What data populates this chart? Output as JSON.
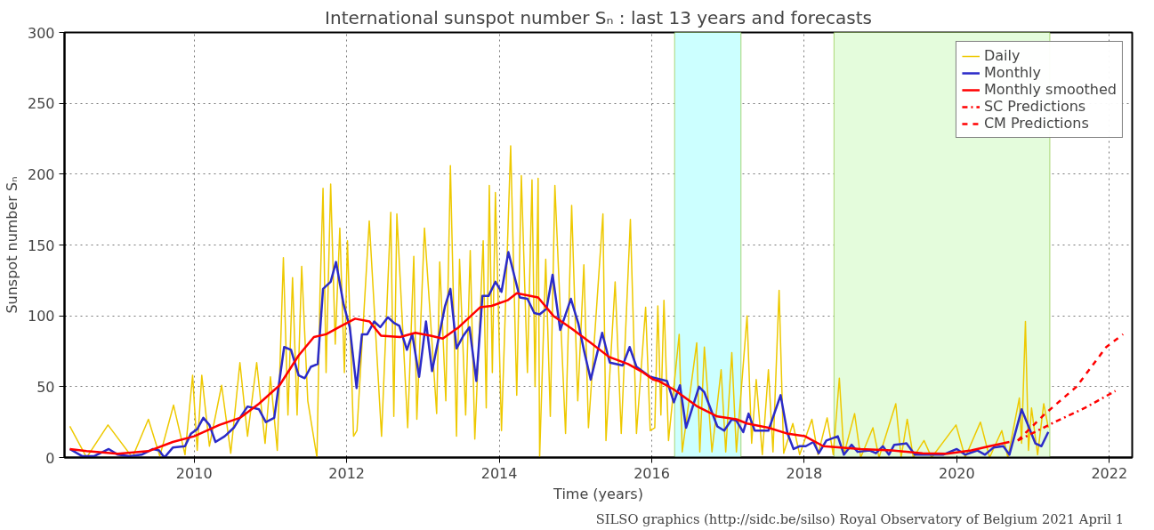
{
  "chart_data": {
    "type": "line",
    "title": "International sunspot number Sₙ : last 13 years and forecasts",
    "xlabel": "Time (years)",
    "ylabel": "Sunspot number Sₙ",
    "xlim": [
      2008.3,
      2022.3
    ],
    "xticks": [
      2010,
      2012,
      2014,
      2016,
      2018,
      2020,
      2022
    ],
    "ylim": [
      0,
      300
    ],
    "yticks": [
      0,
      50,
      100,
      150,
      200,
      250,
      300
    ],
    "grid": true,
    "legend": "top right",
    "marker": "none",
    "bands": [
      {
        "axis": "x",
        "from": 2016.3,
        "to": 2017.17,
        "color": "#ccffff"
      },
      {
        "axis": "x",
        "from": 2018.39,
        "to": 2021.22,
        "color": "#e4fcdc"
      }
    ],
    "annotations": [
      "SILSO graphics (http://sidc.be/silso)  Royal Observatory of Belgium  2021 April 1"
    ],
    "series": [
      {
        "name": "Daily",
        "color": "#eec900",
        "line_style": "solid",
        "x": [
          2008.37,
          2008.59,
          2008.87,
          2009.19,
          2009.4,
          2009.55,
          2009.73,
          2009.88,
          2009.98,
          2010.04,
          2010.1,
          2010.2,
          2010.36,
          2010.48,
          2010.6,
          2010.7,
          2010.82,
          2010.93,
          2011.0,
          2011.09,
          2011.17,
          2011.23,
          2011.29,
          2011.35,
          2011.41,
          2011.49,
          2011.61,
          2011.65,
          2011.69,
          2011.73,
          2011.79,
          2011.85,
          2011.91,
          2011.97,
          2012.01,
          2012.09,
          2012.135,
          2012.296,
          2012.457,
          2012.578,
          2012.618,
          2012.658,
          2012.8,
          2012.88,
          2012.92,
          2013.02,
          2013.18,
          2013.22,
          2013.3,
          2013.36,
          2013.44,
          2013.48,
          2013.56,
          2013.62,
          2013.68,
          2013.79,
          2013.83,
          2013.87,
          2013.91,
          2013.95,
          2014.03,
          2014.15,
          2014.23,
          2014.29,
          2014.37,
          2014.43,
          2014.47,
          2014.51,
          2014.53,
          2014.61,
          2014.67,
          2014.73,
          2014.87,
          2014.95,
          2015.03,
          2015.11,
          2015.17,
          2015.36,
          2015.4,
          2015.52,
          2015.6,
          2015.72,
          2015.8,
          2015.92,
          2015.98,
          2016.04,
          2016.08,
          2016.12,
          2016.16,
          2016.22,
          2016.36,
          2016.4,
          2016.59,
          2016.63,
          2016.69,
          2016.79,
          2016.91,
          2016.97,
          2017.05,
          2017.11,
          2017.25,
          2017.31,
          2017.37,
          2017.45,
          2017.53,
          2017.59,
          2017.67,
          2017.73,
          2017.85,
          2017.94,
          2018.1,
          2018.18,
          2018.3,
          2018.38,
          2018.46,
          2018.52,
          2018.66,
          2018.74,
          2018.9,
          2018.98,
          2019.2,
          2019.27,
          2019.35,
          2019.43,
          2019.57,
          2019.67,
          2019.99,
          2020.11,
          2020.31,
          2020.43,
          2020.59,
          2020.67,
          2020.82,
          2020.85,
          2020.9,
          2020.94,
          2020.98,
          2021.06,
          2021.14,
          2021.2
        ],
        "values": [
          22,
          0,
          23,
          0,
          27,
          1,
          37,
          2,
          58,
          5,
          58,
          8,
          51,
          3,
          67,
          15,
          67,
          10,
          57,
          5,
          141,
          30,
          127,
          30,
          135,
          40,
          0,
          115,
          190,
          60,
          193,
          80,
          162,
          60,
          153,
          15,
          19,
          167,
          15,
          173,
          29,
          172,
          21,
          142,
          27,
          162,
          31,
          138,
          40,
          206,
          15,
          140,
          30,
          146,
          13,
          153,
          35,
          192,
          60,
          187,
          19,
          220,
          44,
          199,
          60,
          196,
          50,
          197,
          0,
          140,
          29,
          192,
          17,
          178,
          40,
          136,
          21,
          172,
          12,
          124,
          17,
          168,
          17,
          106,
          19,
          21,
          107,
          30,
          111,
          12,
          87,
          4,
          81,
          4,
          78,
          4,
          62,
          4,
          74,
          4,
          100,
          10,
          55,
          2,
          62,
          4,
          118,
          3,
          24,
          2,
          27,
          2,
          28,
          2,
          56,
          2,
          31,
          0,
          21,
          0,
          38,
          0,
          27,
          0,
          12,
          0,
          23,
          0,
          25,
          0,
          19,
          0,
          42,
          10,
          96,
          5,
          35,
          2,
          38,
          21
        ]
      },
      {
        "name": "Monthly",
        "color": "#2b2bc8",
        "line_style": "solid",
        "x": [
          2008.37,
          2008.53,
          2008.69,
          2008.88,
          2009.0,
          2009.15,
          2009.31,
          2009.46,
          2009.54,
          2009.61,
          2009.72,
          2009.88,
          2009.96,
          2010.04,
          2010.12,
          2010.2,
          2010.28,
          2010.4,
          2010.52,
          2010.6,
          2010.7,
          2010.85,
          2010.94,
          2011.05,
          2011.18,
          2011.27,
          2011.37,
          2011.45,
          2011.53,
          2011.62,
          2011.69,
          2011.79,
          2011.86,
          2011.96,
          2012.04,
          2012.13,
          2012.2,
          2012.27,
          2012.36,
          2012.44,
          2012.54,
          2012.62,
          2012.69,
          2012.79,
          2012.86,
          2012.95,
          2013.04,
          2013.12,
          2013.29,
          2013.36,
          2013.44,
          2013.53,
          2013.61,
          2013.7,
          2013.78,
          2013.86,
          2013.95,
          2014.03,
          2014.12,
          2014.27,
          2014.37,
          2014.46,
          2014.53,
          2014.62,
          2014.7,
          2014.8,
          2014.94,
          2015.04,
          2015.11,
          2015.2,
          2015.35,
          2015.45,
          2015.62,
          2015.71,
          2015.8,
          2015.98,
          2016.2,
          2016.29,
          2016.37,
          2016.45,
          2016.62,
          2016.69,
          2016.86,
          2016.95,
          2017.05,
          2017.11,
          2017.2,
          2017.27,
          2017.35,
          2017.53,
          2017.69,
          2017.78,
          2017.86,
          2017.94,
          2018.02,
          2018.12,
          2018.19,
          2018.29,
          2018.44,
          2018.52,
          2018.62,
          2018.7,
          2018.86,
          2018.94,
          2019.03,
          2019.11,
          2019.18,
          2019.34,
          2019.45,
          2019.82,
          2020.0,
          2020.11,
          2020.27,
          2020.37,
          2020.48,
          2020.61,
          2020.69,
          2020.85,
          2021.03,
          2021.11,
          2021.2
        ],
        "values": [
          6,
          1,
          1,
          6,
          2,
          1,
          2,
          6,
          5,
          0,
          7,
          8,
          17,
          20,
          28,
          23,
          11,
          15,
          21,
          28,
          36,
          34,
          25,
          28,
          78,
          76,
          58,
          56,
          64,
          66,
          119,
          124,
          138,
          108,
          92,
          49,
          87,
          87,
          96,
          92,
          99,
          95,
          93,
          76,
          87,
          57,
          96,
          61,
          107,
          119,
          77,
          86,
          92,
          54,
          114,
          114,
          124,
          117,
          145,
          113,
          112,
          102,
          101,
          105,
          129,
          90,
          112,
          94,
          76,
          55,
          88,
          67,
          65,
          78,
          64,
          57,
          54,
          39,
          51,
          21,
          50,
          46,
          22,
          19,
          27,
          26,
          18,
          31,
          19,
          19,
          44,
          17,
          6,
          8,
          8,
          11,
          3,
          12,
          15,
          2,
          9,
          4,
          5,
          3,
          8,
          2,
          9,
          10,
          2,
          2,
          6,
          2,
          5,
          2,
          7,
          8,
          2,
          34,
          10,
          8,
          18
        ]
      },
      {
        "name": "Monthly smoothed",
        "color": "#ff0000",
        "line_style": "solid",
        "x": [
          2008.37,
          2008.59,
          2009.0,
          2009.4,
          2009.72,
          2010.0,
          2010.33,
          2010.6,
          2010.85,
          2011.12,
          2011.37,
          2011.57,
          2011.73,
          2011.9,
          2012.11,
          2012.3,
          2012.45,
          2012.7,
          2012.9,
          2013.1,
          2013.26,
          2013.47,
          2013.75,
          2013.9,
          2014.11,
          2014.23,
          2014.51,
          2014.71,
          2014.95,
          2015.2,
          2015.44,
          2015.69,
          2015.89,
          2016.02,
          2016.09,
          2016.29,
          2016.6,
          2016.86,
          2017.11,
          2017.25,
          2017.53,
          2017.77,
          2018.01,
          2018.25,
          2018.74,
          2019.15,
          2019.55,
          2019.87,
          2020.19,
          2020.43,
          2020.69
        ],
        "values": [
          6,
          4.5,
          2.6,
          4.5,
          11,
          15,
          23,
          28,
          38,
          51,
          72,
          85,
          87,
          92,
          98,
          96,
          86,
          85,
          88,
          86,
          84,
          92,
          106,
          107,
          111,
          116,
          113,
          100,
          91,
          81,
          71,
          66,
          60,
          55,
          54,
          48,
          36,
          29,
          27,
          24,
          21,
          17,
          15,
          8,
          6,
          5,
          3,
          2.6,
          5,
          8,
          11
        ]
      },
      {
        "name": "SC Predictions",
        "color": "#ff0000",
        "line_style": "dashdot",
        "x": [
          2020.8,
          2021.32,
          2021.68,
          2022.08
        ],
        "values": [
          12,
          26,
          35,
          47
        ]
      },
      {
        "name": "CM Predictions",
        "color": "#ff0000",
        "line_style": "dashed",
        "x": [
          2020.8,
          2021.16,
          2021.57,
          2021.96,
          2022.18
        ],
        "values": [
          12,
          31,
          50,
          78,
          87
        ]
      }
    ]
  }
}
